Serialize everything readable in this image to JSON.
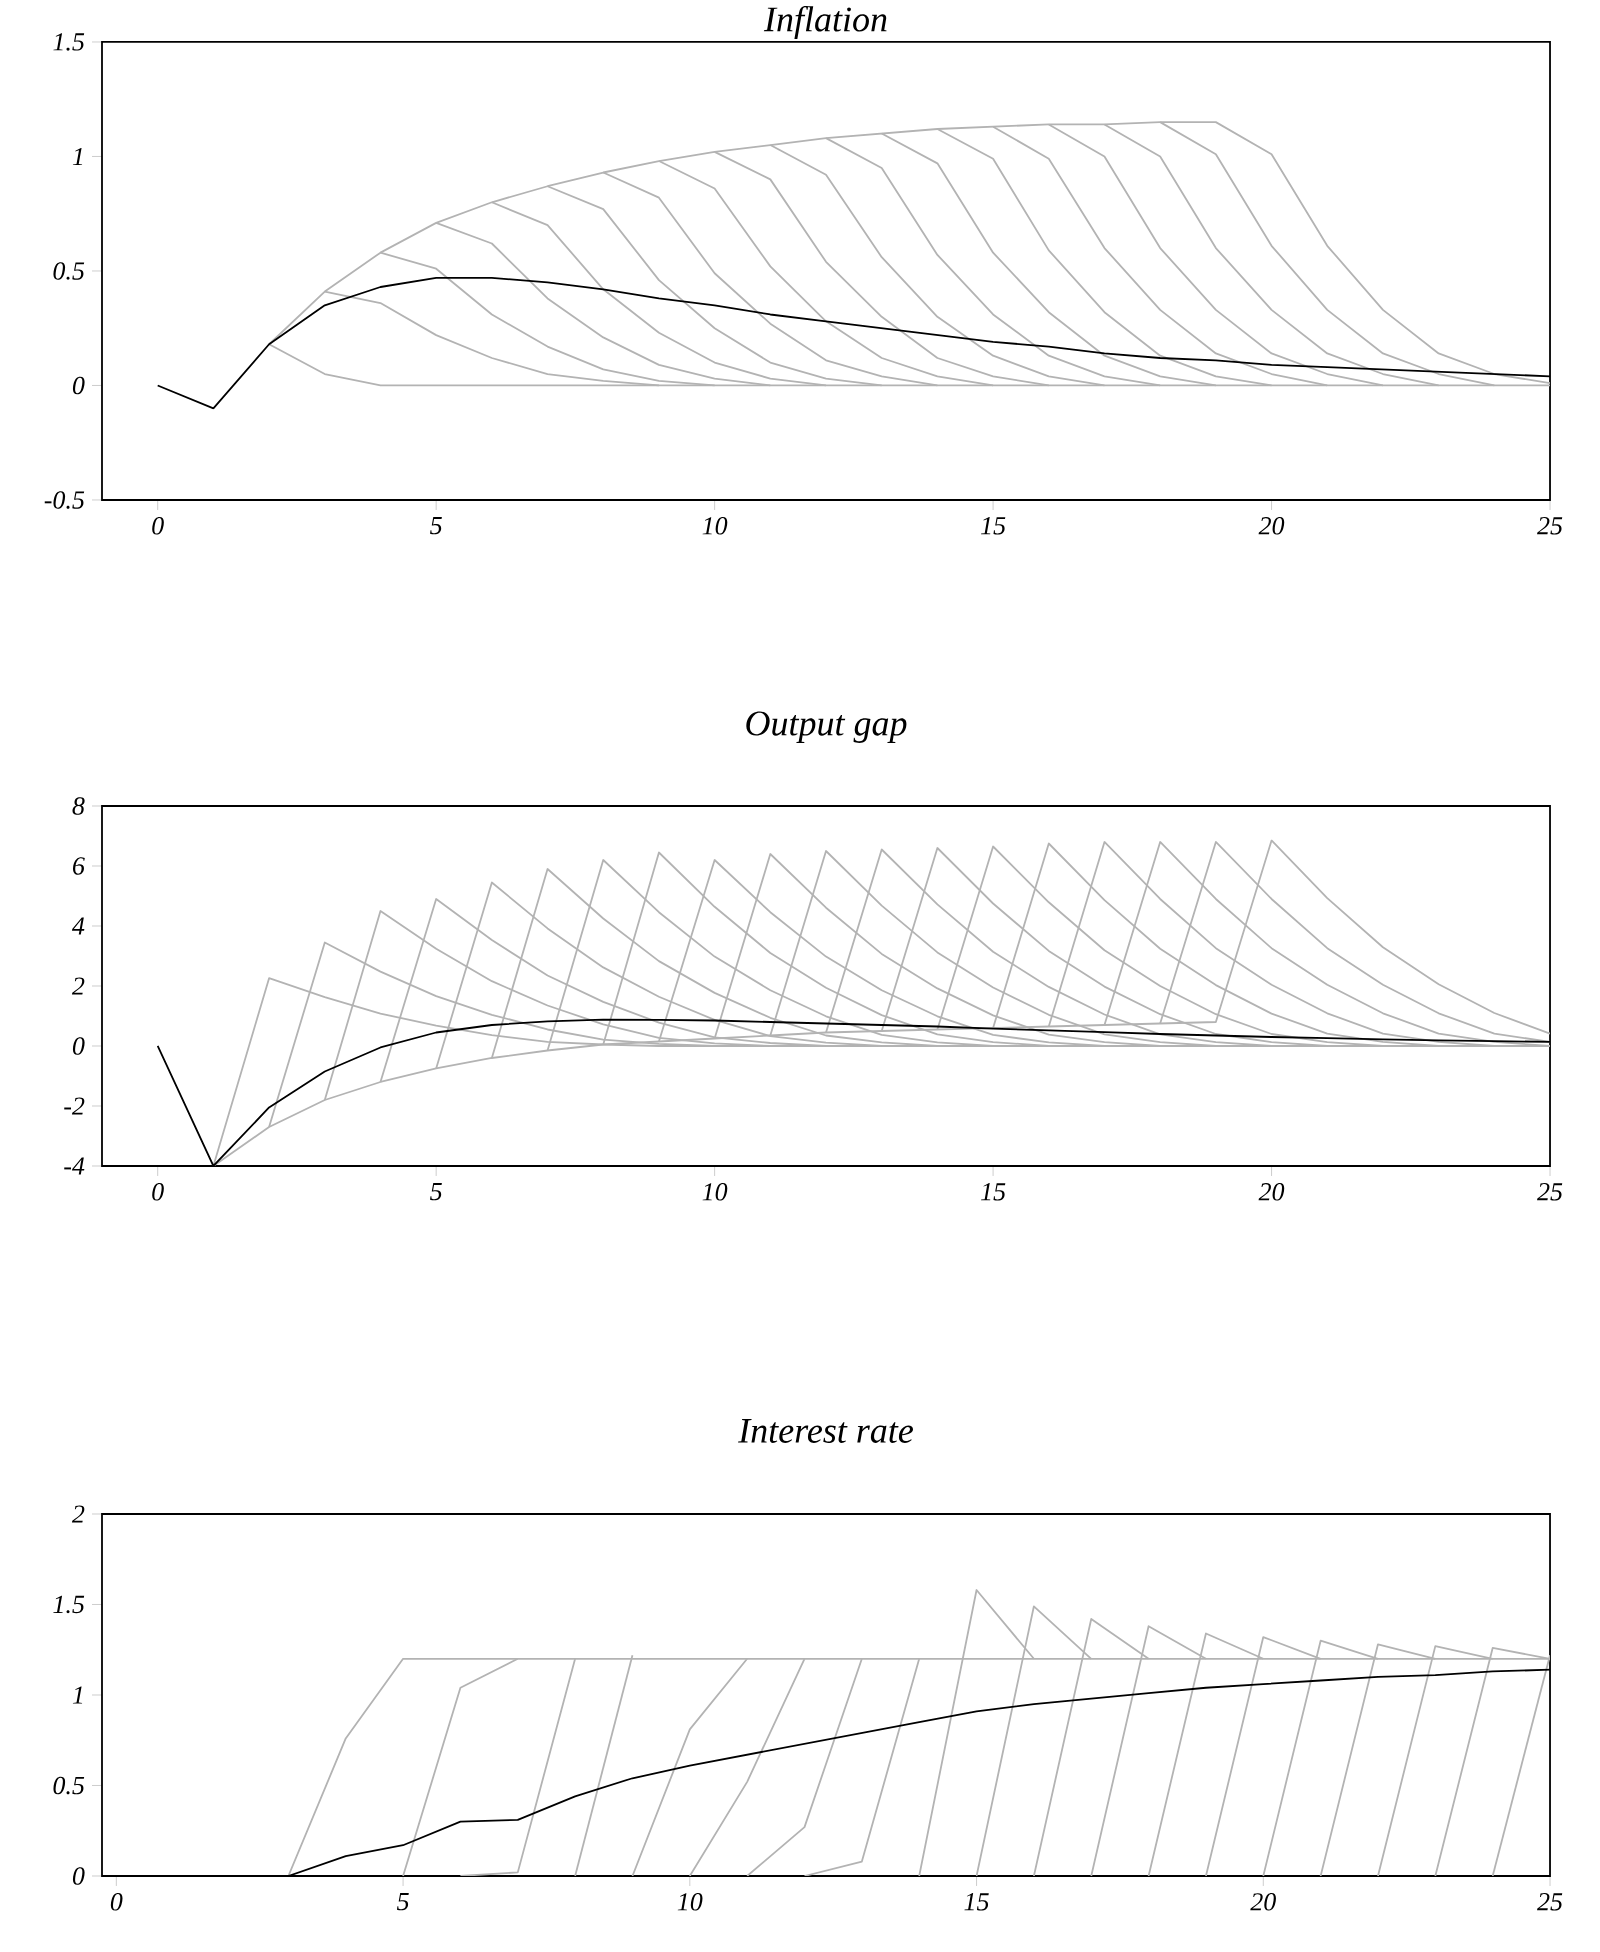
{
  "chart_data": [
    {
      "type": "line",
      "title": "Inflation",
      "x": [
        0,
        1,
        2,
        3,
        4,
        5,
        6,
        7,
        8,
        9,
        10,
        11,
        12,
        13,
        14,
        15,
        16,
        17,
        18,
        19,
        20,
        21,
        22,
        23,
        24,
        25
      ],
      "xlim": [
        -1,
        25
      ],
      "ylim": [
        -0.5,
        1.5
      ],
      "xticks": [
        0,
        5,
        10,
        15,
        20,
        25
      ],
      "yticks": [
        -0.5,
        0,
        0.5,
        1,
        1.5
      ],
      "series": [
        {
          "color": "#b3b3b3",
          "x": [
            2,
            3,
            4,
            5,
            6,
            7,
            8,
            9,
            10,
            11,
            12,
            13,
            14,
            15,
            16,
            17,
            18,
            19,
            20,
            21,
            22,
            23,
            24,
            25
          ],
          "values": [
            0.18,
            0.05,
            0,
            0,
            0,
            0,
            0,
            0,
            0,
            0,
            0,
            0,
            0,
            0,
            0,
            0,
            0,
            0,
            0,
            0,
            0,
            0,
            0,
            0
          ]
        },
        {
          "color": "#b3b3b3",
          "x": [
            3,
            4,
            5,
            6,
            7,
            8,
            9
          ],
          "values": [
            0.41,
            0.36,
            0.22,
            0.12,
            0.05,
            0.02,
            0
          ]
        },
        {
          "color": "#b3b3b3",
          "x": [
            4,
            5,
            6,
            7,
            8,
            9,
            10
          ],
          "values": [
            0.58,
            0.51,
            0.31,
            0.17,
            0.07,
            0.02,
            0
          ]
        },
        {
          "color": "#b3b3b3",
          "x": [
            5,
            6,
            7,
            8,
            9,
            10,
            11
          ],
          "values": [
            0.71,
            0.62,
            0.38,
            0.21,
            0.09,
            0.03,
            0
          ]
        },
        {
          "color": "#b3b3b3",
          "x": [
            6,
            7,
            8,
            9,
            10,
            11,
            12
          ],
          "values": [
            0.8,
            0.7,
            0.42,
            0.23,
            0.1,
            0.03,
            0
          ]
        },
        {
          "color": "#b3b3b3",
          "x": [
            7,
            8,
            9,
            10,
            11,
            12,
            13
          ],
          "values": [
            0.87,
            0.77,
            0.46,
            0.25,
            0.1,
            0.03,
            0
          ]
        },
        {
          "color": "#b3b3b3",
          "x": [
            8,
            9,
            10,
            11,
            12,
            13,
            14
          ],
          "values": [
            0.93,
            0.82,
            0.49,
            0.27,
            0.11,
            0.04,
            0
          ]
        },
        {
          "color": "#b3b3b3",
          "x": [
            9,
            10,
            11,
            12,
            13,
            14,
            15
          ],
          "values": [
            0.98,
            0.86,
            0.52,
            0.28,
            0.12,
            0.04,
            0
          ]
        },
        {
          "color": "#b3b3b3",
          "x": [
            10,
            11,
            12,
            13,
            14,
            15,
            16
          ],
          "values": [
            1.02,
            0.9,
            0.54,
            0.3,
            0.12,
            0.04,
            0
          ]
        },
        {
          "color": "#b3b3b3",
          "x": [
            11,
            12,
            13,
            14,
            15,
            16,
            17
          ],
          "values": [
            1.05,
            0.92,
            0.56,
            0.3,
            0.13,
            0.04,
            0
          ]
        },
        {
          "color": "#b3b3b3",
          "x": [
            12,
            13,
            14,
            15,
            16,
            17,
            18
          ],
          "values": [
            1.08,
            0.95,
            0.57,
            0.31,
            0.13,
            0.04,
            0
          ]
        },
        {
          "color": "#b3b3b3",
          "x": [
            13,
            14,
            15,
            16,
            17,
            18,
            19
          ],
          "values": [
            1.1,
            0.97,
            0.58,
            0.32,
            0.13,
            0.04,
            0
          ]
        },
        {
          "color": "#b3b3b3",
          "x": [
            14,
            15,
            16,
            17,
            18,
            19,
            20
          ],
          "values": [
            1.12,
            0.99,
            0.59,
            0.32,
            0.13,
            0.04,
            0
          ]
        },
        {
          "color": "#b3b3b3",
          "x": [
            15,
            16,
            17,
            18,
            19,
            20,
            21
          ],
          "values": [
            1.13,
            0.99,
            0.6,
            0.33,
            0.14,
            0.05,
            0
          ]
        },
        {
          "color": "#b3b3b3",
          "x": [
            16,
            17,
            18,
            19,
            20,
            21,
            22
          ],
          "values": [
            1.14,
            1,
            0.6,
            0.33,
            0.14,
            0.05,
            0
          ]
        },
        {
          "color": "#b3b3b3",
          "x": [
            17,
            18,
            19,
            20,
            21,
            22,
            23
          ],
          "values": [
            1.14,
            1,
            0.6,
            0.33,
            0.14,
            0.05,
            0
          ]
        },
        {
          "color": "#b3b3b3",
          "x": [
            18,
            19,
            20,
            21,
            22,
            23,
            24
          ],
          "values": [
            1.15,
            1.01,
            0.61,
            0.33,
            0.14,
            0.05,
            0
          ]
        },
        {
          "color": "#b3b3b3",
          "x": [
            2,
            3,
            4,
            5,
            6,
            7,
            8,
            9,
            10,
            11,
            12,
            13,
            14,
            15,
            16,
            17,
            18,
            19,
            20,
            21,
            22,
            23,
            24,
            25
          ],
          "values": [
            0.18,
            0.41,
            0.58,
            0.71,
            0.8,
            0.87,
            0.93,
            0.98,
            1.02,
            1.05,
            1.08,
            1.1,
            1.12,
            1.13,
            1.14,
            1.14,
            1.15,
            1.15,
            1.01,
            0.61,
            0.33,
            0.14,
            0.05,
            0.01
          ]
        },
        {
          "color": "#000000",
          "values": [
            0,
            -0.1,
            0.18,
            0.35,
            0.43,
            0.47,
            0.47,
            0.45,
            0.42,
            0.38,
            0.35,
            0.31,
            0.28,
            0.25,
            0.22,
            0.19,
            0.17,
            0.14,
            0.12,
            0.11,
            0.09,
            0.08,
            0.07,
            0.06,
            0.05,
            0.04
          ]
        }
      ]
    },
    {
      "type": "line",
      "title": "Output gap",
      "x": [
        0,
        1,
        2,
        3,
        4,
        5,
        6,
        7,
        8,
        9,
        10,
        11,
        12,
        13,
        14,
        15,
        16,
        17,
        18,
        19,
        20,
        21,
        22,
        23,
        24,
        25
      ],
      "xlim": [
        -1,
        25
      ],
      "ylim": [
        -4,
        8
      ],
      "xticks": [
        0,
        5,
        10,
        15,
        20,
        25
      ],
      "yticks": [
        -4,
        -2,
        0,
        2,
        4,
        6,
        8
      ],
      "series": [
        {
          "color": "#b3b3b3",
          "x": [
            1,
            2,
            3,
            4,
            5,
            6,
            7,
            8,
            9,
            10,
            11,
            12,
            13,
            14,
            15,
            16,
            17,
            18,
            19,
            20,
            21,
            22,
            23,
            24,
            25
          ],
          "values": [
            -4,
            2.26,
            1.63,
            1.08,
            0.68,
            0.36,
            0.14,
            0.05,
            0,
            0,
            0,
            0,
            0,
            0,
            0,
            0,
            0,
            0,
            0,
            0,
            0,
            0,
            0,
            0,
            0
          ]
        },
        {
          "color": "#b3b3b3",
          "x": [
            2,
            3,
            4,
            5,
            6,
            7,
            8,
            9,
            10
          ],
          "values": [
            -2.7,
            3.45,
            2.48,
            1.66,
            1.04,
            0.55,
            0.21,
            0.07,
            0
          ]
        },
        {
          "color": "#b3b3b3",
          "x": [
            3,
            4,
            5,
            6,
            7,
            8,
            9,
            10,
            11
          ],
          "values": [
            -1.8,
            4.5,
            3.24,
            2.16,
            1.35,
            0.72,
            0.27,
            0.09,
            0
          ]
        },
        {
          "color": "#b3b3b3",
          "x": [
            4,
            5,
            6,
            7,
            8,
            9,
            10,
            11,
            12
          ],
          "values": [
            -1.2,
            4.9,
            3.53,
            2.35,
            1.47,
            0.78,
            0.29,
            0.1,
            0
          ]
        },
        {
          "color": "#b3b3b3",
          "x": [
            5,
            6,
            7,
            8,
            9,
            10,
            11,
            12,
            13
          ],
          "values": [
            -0.75,
            5.45,
            3.92,
            2.62,
            1.64,
            0.87,
            0.33,
            0.11,
            0
          ]
        },
        {
          "color": "#b3b3b3",
          "x": [
            6,
            7,
            8,
            9,
            10,
            11,
            12,
            13,
            14
          ],
          "values": [
            -0.4,
            5.9,
            4.25,
            2.83,
            1.77,
            0.94,
            0.35,
            0.12,
            0
          ]
        },
        {
          "color": "#b3b3b3",
          "x": [
            7,
            8,
            9,
            10,
            11,
            12,
            13,
            14,
            15
          ],
          "values": [
            -0.15,
            6.2,
            4.46,
            2.98,
            1.86,
            0.99,
            0.37,
            0.12,
            0
          ]
        },
        {
          "color": "#b3b3b3",
          "x": [
            8,
            9,
            10,
            11,
            12,
            13,
            14,
            15,
            16
          ],
          "values": [
            0.05,
            6.45,
            4.64,
            3.1,
            1.94,
            1.03,
            0.39,
            0.13,
            0
          ]
        },
        {
          "color": "#b3b3b3",
          "x": [
            9,
            10,
            11,
            12,
            13,
            14,
            15,
            16,
            17
          ],
          "values": [
            0.15,
            6.2,
            4.46,
            2.98,
            1.86,
            0.99,
            0.37,
            0.12,
            0
          ]
        },
        {
          "color": "#b3b3b3",
          "x": [
            10,
            11,
            12,
            13,
            14,
            15,
            16,
            17,
            18
          ],
          "values": [
            0.25,
            6.4,
            4.61,
            3.07,
            1.92,
            1.02,
            0.38,
            0.13,
            0
          ]
        },
        {
          "color": "#b3b3b3",
          "x": [
            11,
            12,
            13,
            14,
            15,
            16,
            17,
            18,
            19
          ],
          "values": [
            0.35,
            6.5,
            4.68,
            3.12,
            1.95,
            1.04,
            0.39,
            0.13,
            0
          ]
        },
        {
          "color": "#b3b3b3",
          "x": [
            12,
            13,
            14,
            15,
            16,
            17,
            18,
            19,
            20
          ],
          "values": [
            0.45,
            6.55,
            4.72,
            3.14,
            1.97,
            1.05,
            0.39,
            0.13,
            0
          ]
        },
        {
          "color": "#b3b3b3",
          "x": [
            13,
            14,
            15,
            16,
            17,
            18,
            19,
            20,
            21
          ],
          "values": [
            0.5,
            6.6,
            4.75,
            3.17,
            1.98,
            1.06,
            0.4,
            0.13,
            0
          ]
        },
        {
          "color": "#b3b3b3",
          "x": [
            14,
            15,
            16,
            17,
            18,
            19,
            20,
            21,
            22
          ],
          "values": [
            0.55,
            6.65,
            4.79,
            3.19,
            2,
            1.06,
            0.4,
            0.13,
            0
          ]
        },
        {
          "color": "#b3b3b3",
          "x": [
            15,
            16,
            17,
            18,
            19,
            20,
            21,
            22,
            23
          ],
          "values": [
            0.6,
            6.75,
            4.86,
            3.24,
            2.03,
            1.08,
            0.41,
            0.14,
            0
          ]
        },
        {
          "color": "#b3b3b3",
          "x": [
            16,
            17,
            18,
            19,
            20,
            21,
            22,
            23,
            24
          ],
          "values": [
            0.65,
            6.8,
            4.9,
            3.26,
            2.04,
            1.09,
            0.41,
            0.14,
            0
          ]
        },
        {
          "color": "#b3b3b3",
          "x": [
            17,
            18,
            19,
            20,
            21,
            22,
            23,
            24,
            25
          ],
          "values": [
            0.7,
            6.8,
            4.9,
            3.26,
            2.04,
            1.09,
            0.41,
            0.14,
            0
          ]
        },
        {
          "color": "#b3b3b3",
          "x": [
            18,
            19,
            20,
            21,
            22,
            23,
            24,
            25
          ],
          "values": [
            0.75,
            6.8,
            4.9,
            3.26,
            2.04,
            1.09,
            0.41,
            0.14
          ]
        },
        {
          "color": "#b3b3b3",
          "x": [
            1,
            2,
            3,
            4,
            5,
            6,
            7,
            8,
            9,
            10,
            11,
            12,
            13,
            14,
            15,
            16,
            17,
            18,
            19,
            20,
            21,
            22,
            23,
            24,
            25
          ],
          "values": [
            -4,
            -2.7,
            -1.8,
            -1.2,
            -0.75,
            -0.4,
            -0.15,
            0.05,
            0.15,
            0.25,
            0.35,
            0.45,
            0.5,
            0.55,
            0.6,
            0.65,
            0.7,
            0.75,
            0.8,
            6.85,
            4.93,
            3.29,
            2.06,
            1.1,
            0.41
          ]
        },
        {
          "color": "#000000",
          "values": [
            0,
            -4,
            -2.05,
            -0.85,
            -0.05,
            0.45,
            0.7,
            0.82,
            0.88,
            0.87,
            0.85,
            0.8,
            0.75,
            0.7,
            0.65,
            0.58,
            0.52,
            0.46,
            0.4,
            0.35,
            0.3,
            0.26,
            0.22,
            0.19,
            0.16,
            0.14
          ]
        }
      ]
    },
    {
      "type": "line",
      "title": "Interest rate",
      "x": [
        0,
        1,
        2,
        3,
        4,
        5,
        6,
        7,
        8,
        9,
        10,
        11,
        12,
        13,
        14,
        15,
        16,
        17,
        18,
        19,
        20,
        21,
        22,
        23,
        24,
        25
      ],
      "xlim": [
        -0.25,
        25
      ],
      "ylim": [
        0,
        2
      ],
      "xticks": [
        0,
        5,
        10,
        15,
        20,
        25
      ],
      "yticks": [
        0,
        0.5,
        1,
        1.5,
        2
      ],
      "series": [
        {
          "color": "#b3b3b3",
          "x": [
            3,
            4,
            5,
            6,
            7,
            8,
            9,
            10,
            11,
            12,
            13,
            14,
            15,
            16,
            17,
            18,
            19,
            20,
            21,
            22,
            23,
            24,
            25
          ],
          "values": [
            0,
            0.76,
            1.2,
            1.2,
            1.2,
            1.2,
            1.2,
            1.2,
            1.2,
            1.2,
            1.2,
            1.2,
            1.2,
            1.2,
            1.2,
            1.2,
            1.2,
            1.2,
            1.2,
            1.2,
            1.2,
            1.2,
            1.2
          ]
        },
        {
          "color": "#b3b3b3",
          "x": [
            5,
            6,
            7
          ],
          "values": [
            0,
            1.04,
            1.2
          ]
        },
        {
          "color": "#b3b3b3",
          "x": [
            6,
            7,
            8
          ],
          "values": [
            0,
            0.02,
            1.2
          ]
        },
        {
          "color": "#b3b3b3",
          "x": [
            8,
            9
          ],
          "values": [
            0,
            1.22
          ]
        },
        {
          "color": "#b3b3b3",
          "x": [
            9,
            10,
            11
          ],
          "values": [
            0,
            0.81,
            1.2
          ]
        },
        {
          "color": "#b3b3b3",
          "x": [
            10,
            11,
            12
          ],
          "values": [
            0,
            0.52,
            1.2
          ]
        },
        {
          "color": "#b3b3b3",
          "x": [
            11,
            12,
            13
          ],
          "values": [
            0,
            0.27,
            1.2
          ]
        },
        {
          "color": "#b3b3b3",
          "x": [
            12,
            13,
            14
          ],
          "values": [
            0,
            0.08,
            1.2
          ]
        },
        {
          "color": "#b3b3b3",
          "x": [
            14,
            15,
            16
          ],
          "values": [
            0,
            1.58,
            1.2
          ]
        },
        {
          "color": "#b3b3b3",
          "x": [
            15,
            16,
            17
          ],
          "values": [
            0,
            1.49,
            1.2
          ]
        },
        {
          "color": "#b3b3b3",
          "x": [
            16,
            17,
            18
          ],
          "values": [
            0,
            1.42,
            1.2
          ]
        },
        {
          "color": "#b3b3b3",
          "x": [
            17,
            18,
            19
          ],
          "values": [
            0,
            1.38,
            1.2
          ]
        },
        {
          "color": "#b3b3b3",
          "x": [
            18,
            19,
            20
          ],
          "values": [
            0,
            1.34,
            1.2
          ]
        },
        {
          "color": "#b3b3b3",
          "x": [
            19,
            20,
            21
          ],
          "values": [
            0,
            1.32,
            1.2
          ]
        },
        {
          "color": "#b3b3b3",
          "x": [
            20,
            21,
            22
          ],
          "values": [
            0,
            1.3,
            1.2
          ]
        },
        {
          "color": "#b3b3b3",
          "x": [
            21,
            22,
            23
          ],
          "values": [
            0,
            1.28,
            1.2
          ]
        },
        {
          "color": "#b3b3b3",
          "x": [
            22,
            23,
            24
          ],
          "values": [
            0,
            1.27,
            1.2
          ]
        },
        {
          "color": "#b3b3b3",
          "x": [
            23,
            24,
            25
          ],
          "values": [
            0,
            1.26,
            1.2
          ]
        },
        {
          "color": "#b3b3b3",
          "x": [
            24,
            25
          ],
          "values": [
            0,
            1.22
          ]
        },
        {
          "color": "#000000",
          "values": [
            0,
            0,
            0,
            0,
            0.11,
            0.17,
            0.3,
            0.31,
            0.44,
            0.54,
            0.61,
            0.67,
            0.73,
            0.79,
            0.85,
            0.91,
            0.95,
            0.98,
            1.01,
            1.04,
            1.06,
            1.08,
            1.1,
            1.11,
            1.13,
            1.14
          ]
        }
      ]
    }
  ]
}
